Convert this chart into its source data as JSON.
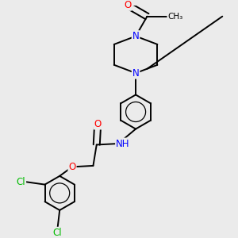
{
  "bg_color": "#ebebeb",
  "atom_colors": {
    "N": "#0000ff",
    "O": "#ff0000",
    "Cl": "#00bb00"
  },
  "bond_color": "#000000",
  "bond_width": 1.4,
  "figsize": [
    3.0,
    3.0
  ],
  "dpi": 100,
  "xlim": [
    0,
    3.0
  ],
  "ylim": [
    0,
    3.0
  ]
}
